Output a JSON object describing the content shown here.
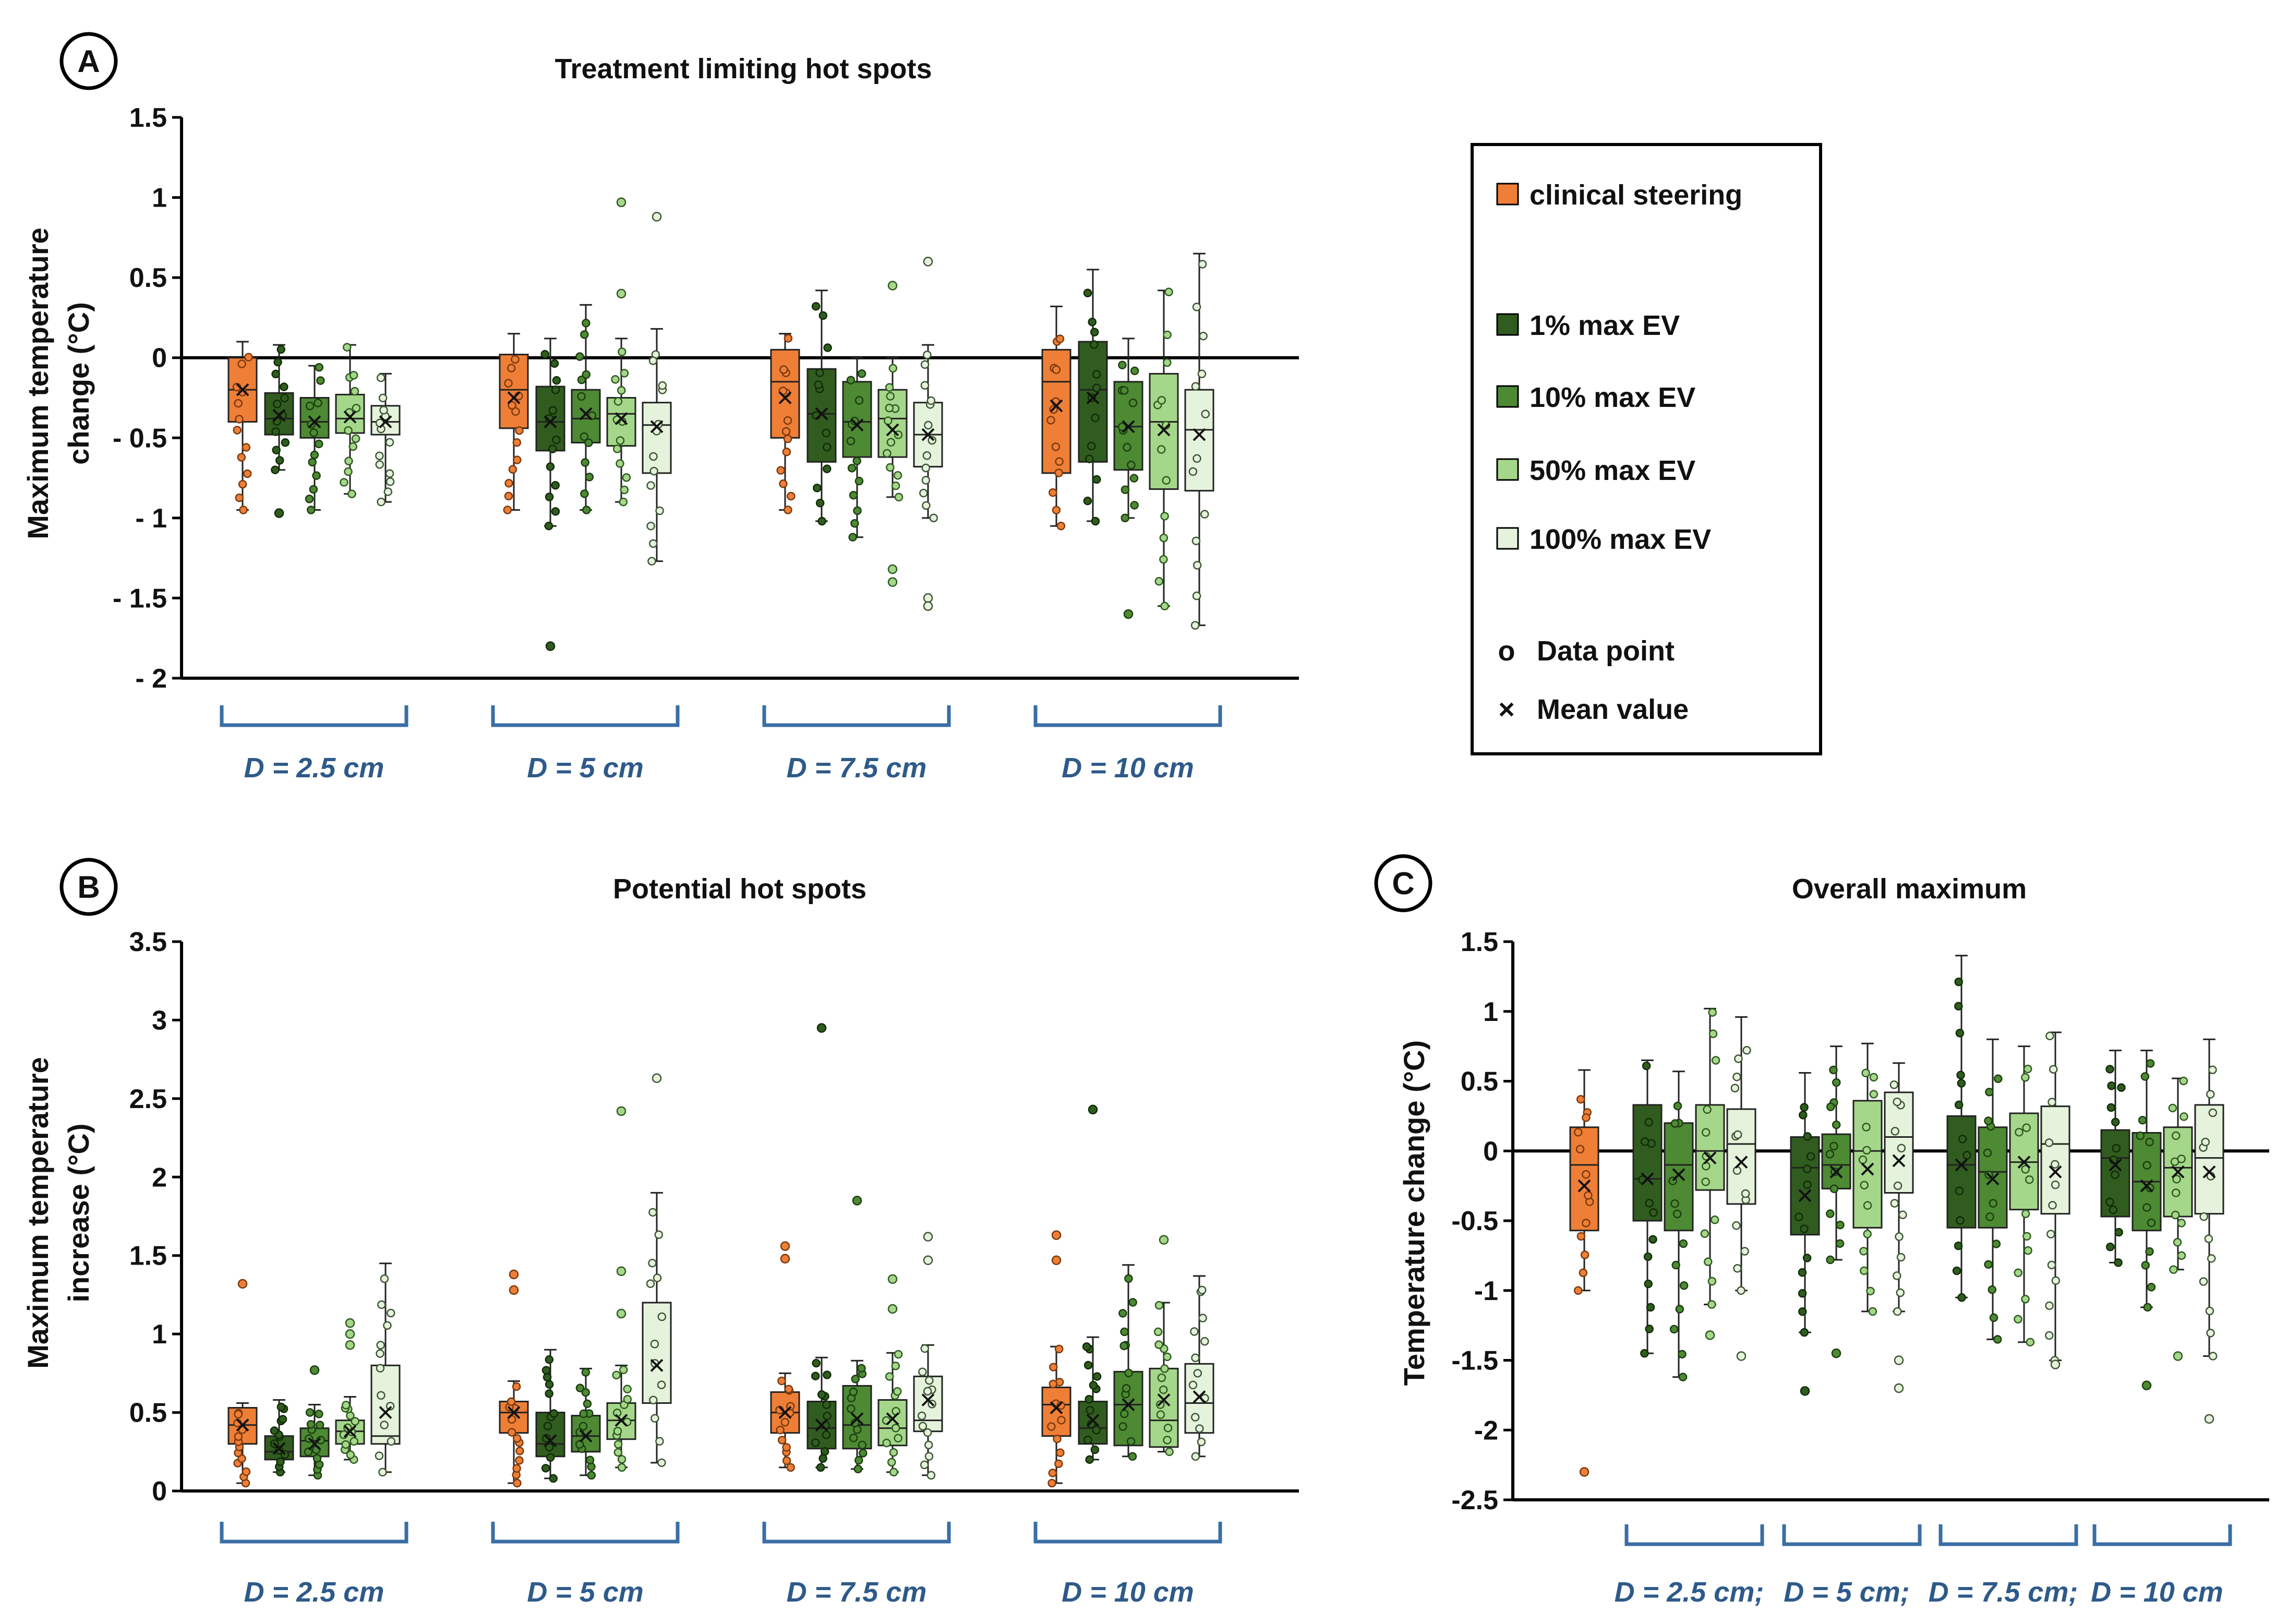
{
  "figure": {
    "colors": {
      "clinical": "#ef7f37",
      "ev1": "#315c1f",
      "ev10": "#4d8a33",
      "ev50": "#a5d78a",
      "ev100": "#e6f3dc",
      "bracket": "#3a6ea5",
      "axis": "#000000"
    },
    "legend": {
      "items": [
        {
          "label": "clinical steering",
          "color": "#ef7f37"
        },
        {
          "label": "1% max EV",
          "color": "#315c1f"
        },
        {
          "label": "10% max EV",
          "color": "#4d8a33"
        },
        {
          "label": "50% max EV",
          "color": "#a5d78a"
        },
        {
          "label": "100% max EV",
          "color": "#e6f3dc"
        }
      ],
      "data_point_symbol": "o",
      "data_point_label": "Data point",
      "mean_symbol": "×",
      "mean_label": "Mean value"
    }
  },
  "chart_data": [
    {
      "type": "box",
      "panel": "A",
      "title": "Treatment limiting hot spots",
      "ylabel_lines": [
        "Maximum temperature",
        "change (°C)"
      ],
      "ylim": [
        -2,
        1.5
      ],
      "yticks": [
        1.5,
        1,
        0.5,
        0,
        -0.5,
        -1,
        -1.5,
        -2
      ],
      "ytick_labels": [
        "1.5",
        "1",
        "0.5",
        "0",
        "- 0.5",
        "- 1",
        "- 1.5",
        "- 2"
      ],
      "zero_line": true,
      "groups": [
        "D = 2.5 cm",
        "D = 5 cm",
        "D = 7.5 cm",
        "D = 10 cm"
      ],
      "series": [
        "clinical steering",
        "1% max EV",
        "10% max EV",
        "50% max EV",
        "100% max EV"
      ],
      "boxes": [
        [
          {
            "min": -0.95,
            "q1": -0.4,
            "median": -0.2,
            "q3": 0.0,
            "max": 0.1,
            "mean": -0.2,
            "outliers": []
          },
          {
            "min": -0.7,
            "q1": -0.48,
            "median": -0.38,
            "q3": -0.22,
            "max": 0.08,
            "mean": -0.36,
            "outliers": [
              -0.97
            ]
          },
          {
            "min": -0.95,
            "q1": -0.5,
            "median": -0.4,
            "q3": -0.25,
            "max": -0.05,
            "mean": -0.4,
            "outliers": []
          },
          {
            "min": -0.85,
            "q1": -0.47,
            "median": -0.38,
            "q3": -0.23,
            "max": 0.08,
            "mean": -0.37,
            "outliers": []
          },
          {
            "min": -0.9,
            "q1": -0.48,
            "median": -0.4,
            "q3": -0.3,
            "max": -0.1,
            "mean": -0.4,
            "outliers": []
          }
        ],
        [
          {
            "min": -0.95,
            "q1": -0.44,
            "median": -0.2,
            "q3": 0.02,
            "max": 0.15,
            "mean": -0.25,
            "outliers": []
          },
          {
            "min": -1.05,
            "q1": -0.58,
            "median": -0.4,
            "q3": -0.18,
            "max": 0.12,
            "mean": -0.4,
            "outliers": [
              -1.8
            ]
          },
          {
            "min": -0.95,
            "q1": -0.53,
            "median": -0.38,
            "q3": -0.2,
            "max": 0.33,
            "mean": -0.35,
            "outliers": []
          },
          {
            "min": -0.9,
            "q1": -0.55,
            "median": -0.35,
            "q3": -0.25,
            "max": 0.12,
            "mean": -0.38,
            "outliers": [
              0.4,
              0.97
            ]
          },
          {
            "min": -1.27,
            "q1": -0.72,
            "median": -0.42,
            "q3": -0.28,
            "max": 0.18,
            "mean": -0.43,
            "outliers": [
              0.88
            ]
          }
        ],
        [
          {
            "min": -0.95,
            "q1": -0.5,
            "median": -0.15,
            "q3": 0.05,
            "max": 0.15,
            "mean": -0.25,
            "outliers": []
          },
          {
            "min": -1.02,
            "q1": -0.65,
            "median": -0.35,
            "q3": -0.07,
            "max": 0.42,
            "mean": -0.35,
            "outliers": []
          },
          {
            "min": -1.12,
            "q1": -0.62,
            "median": -0.4,
            "q3": -0.15,
            "max": 0.0,
            "mean": -0.42,
            "outliers": []
          },
          {
            "min": -0.87,
            "q1": -0.62,
            "median": -0.38,
            "q3": -0.2,
            "max": 0.0,
            "mean": -0.45,
            "outliers": [
              0.45,
              -1.32,
              -1.4
            ]
          },
          {
            "min": -1.0,
            "q1": -0.68,
            "median": -0.48,
            "q3": -0.28,
            "max": 0.08,
            "mean": -0.48,
            "outliers": [
              0.6,
              -1.5,
              -1.55
            ]
          }
        ],
        [
          {
            "min": -1.05,
            "q1": -0.72,
            "median": -0.15,
            "q3": 0.05,
            "max": 0.32,
            "mean": -0.3,
            "outliers": []
          },
          {
            "min": -1.02,
            "q1": -0.65,
            "median": -0.2,
            "q3": 0.1,
            "max": 0.55,
            "mean": -0.25,
            "outliers": []
          },
          {
            "min": -1.0,
            "q1": -0.7,
            "median": -0.43,
            "q3": -0.15,
            "max": 0.12,
            "mean": -0.43,
            "outliers": [
              -1.6
            ]
          },
          {
            "min": -1.55,
            "q1": -0.82,
            "median": -0.4,
            "q3": -0.1,
            "max": 0.42,
            "mean": -0.45,
            "outliers": []
          },
          {
            "min": -1.67,
            "q1": -0.83,
            "median": -0.45,
            "q3": -0.2,
            "max": 0.65,
            "mean": -0.48,
            "outliers": []
          }
        ]
      ]
    },
    {
      "type": "box",
      "panel": "B",
      "title": "Potential hot spots",
      "ylabel_lines": [
        "Maximum temperature",
        "increase (°C)"
      ],
      "ylim": [
        0,
        3.5
      ],
      "yticks": [
        3.5,
        3,
        2.5,
        2,
        1.5,
        1,
        0.5,
        0
      ],
      "ytick_labels": [
        "3.5",
        "3",
        "2.5",
        "2",
        "1.5",
        "1",
        "0.5",
        "0"
      ],
      "zero_line": false,
      "groups": [
        "D = 2.5 cm",
        "D = 5 cm",
        "D = 7.5 cm",
        "D = 10 cm"
      ],
      "series": [
        "clinical steering",
        "1% max EV",
        "10% max EV",
        "50% max EV",
        "100% max EV"
      ],
      "boxes": [
        [
          {
            "min": 0.05,
            "q1": 0.3,
            "median": 0.42,
            "q3": 0.53,
            "max": 0.56,
            "mean": 0.42,
            "outliers": [
              1.32
            ]
          },
          {
            "min": 0.12,
            "q1": 0.2,
            "median": 0.25,
            "q3": 0.35,
            "max": 0.58,
            "mean": 0.27,
            "outliers": []
          },
          {
            "min": 0.1,
            "q1": 0.22,
            "median": 0.32,
            "q3": 0.4,
            "max": 0.55,
            "mean": 0.3,
            "outliers": [
              0.77
            ]
          },
          {
            "min": 0.2,
            "q1": 0.3,
            "median": 0.38,
            "q3": 0.45,
            "max": 0.6,
            "mean": 0.38,
            "outliers": [
              0.93,
              1.0,
              1.07
            ]
          },
          {
            "min": 0.12,
            "q1": 0.3,
            "median": 0.35,
            "q3": 0.8,
            "max": 1.45,
            "mean": 0.5,
            "outliers": []
          }
        ],
        [
          {
            "min": 0.05,
            "q1": 0.37,
            "median": 0.5,
            "q3": 0.57,
            "max": 0.7,
            "mean": 0.5,
            "outliers": [
              1.28,
              1.38
            ]
          },
          {
            "min": 0.08,
            "q1": 0.22,
            "median": 0.3,
            "q3": 0.5,
            "max": 0.9,
            "mean": 0.32,
            "outliers": []
          },
          {
            "min": 0.1,
            "q1": 0.25,
            "median": 0.35,
            "q3": 0.48,
            "max": 0.78,
            "mean": 0.35,
            "outliers": []
          },
          {
            "min": 0.15,
            "q1": 0.33,
            "median": 0.45,
            "q3": 0.56,
            "max": 0.8,
            "mean": 0.45,
            "outliers": [
              1.13,
              1.4,
              2.42
            ]
          },
          {
            "min": 0.18,
            "q1": 0.56,
            "median": 0.56,
            "q3": 1.2,
            "max": 1.9,
            "mean": 0.8,
            "outliers": [
              2.63
            ]
          }
        ],
        [
          {
            "min": 0.15,
            "q1": 0.37,
            "median": 0.5,
            "q3": 0.63,
            "max": 0.75,
            "mean": 0.5,
            "outliers": [
              1.48,
              1.56
            ]
          },
          {
            "min": 0.15,
            "q1": 0.27,
            "median": 0.4,
            "q3": 0.57,
            "max": 0.85,
            "mean": 0.42,
            "outliers": [
              2.95
            ]
          },
          {
            "min": 0.14,
            "q1": 0.27,
            "median": 0.42,
            "q3": 0.67,
            "max": 0.83,
            "mean": 0.46,
            "outliers": [
              1.85
            ]
          },
          {
            "min": 0.12,
            "q1": 0.29,
            "median": 0.4,
            "q3": 0.58,
            "max": 0.88,
            "mean": 0.46,
            "outliers": [
              1.16,
              1.35
            ]
          },
          {
            "min": 0.1,
            "q1": 0.38,
            "median": 0.45,
            "q3": 0.73,
            "max": 0.93,
            "mean": 0.58,
            "outliers": [
              1.47,
              1.62
            ]
          }
        ],
        [
          {
            "min": 0.05,
            "q1": 0.35,
            "median": 0.55,
            "q3": 0.66,
            "max": 0.92,
            "mean": 0.53,
            "outliers": [
              1.47,
              1.63
            ]
          },
          {
            "min": 0.2,
            "q1": 0.3,
            "median": 0.4,
            "q3": 0.57,
            "max": 0.98,
            "mean": 0.45,
            "outliers": [
              2.43
            ]
          },
          {
            "min": 0.22,
            "q1": 0.29,
            "median": 0.55,
            "q3": 0.76,
            "max": 1.44,
            "mean": 0.55,
            "outliers": []
          },
          {
            "min": 0.25,
            "q1": 0.28,
            "median": 0.45,
            "q3": 0.78,
            "max": 1.2,
            "mean": 0.58,
            "outliers": [
              1.6
            ]
          },
          {
            "min": 0.22,
            "q1": 0.37,
            "median": 0.56,
            "q3": 0.81,
            "max": 1.37,
            "mean": 0.6,
            "outliers": []
          }
        ]
      ]
    },
    {
      "type": "box",
      "panel": "C",
      "title": "Overall maximum",
      "ylabel_lines": [
        "Temperature change (°C)"
      ],
      "ylim": [
        -2.5,
        1.5
      ],
      "yticks": [
        1.5,
        1,
        0.5,
        0,
        -0.5,
        -1,
        -1.5,
        -2,
        -2.5
      ],
      "ytick_labels": [
        "1.5",
        "1",
        "0.5",
        "0",
        "-0.5",
        "-1",
        "-1.5",
        "-2",
        "-2.5"
      ],
      "zero_line": true,
      "group_labels": [
        "D = 2.5 cm;",
        "D = 5 cm;",
        "D = 7.5 cm;",
        "D = 10 cm"
      ],
      "clinical_box": {
        "min": -1.0,
        "q1": -0.57,
        "median": -0.1,
        "q3": 0.17,
        "max": 0.58,
        "mean": -0.25,
        "outliers": [
          -2.3
        ]
      },
      "series": [
        "1% max EV",
        "10% max EV",
        "50% max EV",
        "100% max EV"
      ],
      "boxes": [
        [
          {
            "min": -1.45,
            "q1": -0.5,
            "median": -0.2,
            "q3": 0.33,
            "max": 0.65,
            "mean": -0.2,
            "outliers": []
          },
          {
            "min": -1.62,
            "q1": -0.57,
            "median": -0.1,
            "q3": 0.2,
            "max": 0.57,
            "mean": -0.17,
            "outliers": []
          },
          {
            "min": -1.1,
            "q1": -0.28,
            "median": 0.0,
            "q3": 0.33,
            "max": 1.02,
            "mean": -0.05,
            "outliers": [
              -1.32
            ]
          },
          {
            "min": -1.0,
            "q1": -0.38,
            "median": 0.05,
            "q3": 0.3,
            "max": 0.96,
            "mean": -0.08,
            "outliers": [
              -1.47
            ]
          }
        ],
        [
          {
            "min": -1.3,
            "q1": -0.6,
            "median": -0.12,
            "q3": 0.1,
            "max": 0.56,
            "mean": -0.32,
            "outliers": [
              -1.72
            ]
          },
          {
            "min": -0.78,
            "q1": -0.27,
            "median": -0.1,
            "q3": 0.12,
            "max": 0.75,
            "mean": -0.15,
            "outliers": [
              -1.45
            ]
          },
          {
            "min": -1.15,
            "q1": -0.55,
            "median": 0.0,
            "q3": 0.36,
            "max": 0.77,
            "mean": -0.13,
            "outliers": []
          },
          {
            "min": -1.15,
            "q1": -0.3,
            "median": 0.1,
            "q3": 0.42,
            "max": 0.63,
            "mean": -0.07,
            "outliers": [
              -1.5,
              -1.7
            ]
          }
        ],
        [
          {
            "min": -1.05,
            "q1": -0.55,
            "median": -0.1,
            "q3": 0.25,
            "max": 1.4,
            "mean": -0.1,
            "outliers": []
          },
          {
            "min": -1.35,
            "q1": -0.55,
            "median": -0.15,
            "q3": 0.17,
            "max": 0.8,
            "mean": -0.2,
            "outliers": []
          },
          {
            "min": -1.37,
            "q1": -0.42,
            "median": -0.08,
            "q3": 0.27,
            "max": 0.75,
            "mean": -0.08,
            "outliers": []
          },
          {
            "min": -1.5,
            "q1": -0.45,
            "median": 0.05,
            "q3": 0.32,
            "max": 0.85,
            "mean": -0.15,
            "outliers": [
              -1.53
            ]
          }
        ],
        [
          {
            "min": -0.8,
            "q1": -0.47,
            "median": -0.05,
            "q3": 0.15,
            "max": 0.72,
            "mean": -0.1,
            "outliers": []
          },
          {
            "min": -1.12,
            "q1": -0.57,
            "median": -0.22,
            "q3": 0.13,
            "max": 0.72,
            "mean": -0.25,
            "outliers": [
              -1.68
            ]
          },
          {
            "min": -0.85,
            "q1": -0.47,
            "median": -0.12,
            "q3": 0.17,
            "max": 0.52,
            "mean": -0.15,
            "outliers": [
              -1.47
            ]
          },
          {
            "min": -1.47,
            "q1": -0.45,
            "median": -0.05,
            "q3": 0.33,
            "max": 0.8,
            "mean": -0.15,
            "outliers": [
              -1.92
            ]
          }
        ]
      ]
    }
  ]
}
